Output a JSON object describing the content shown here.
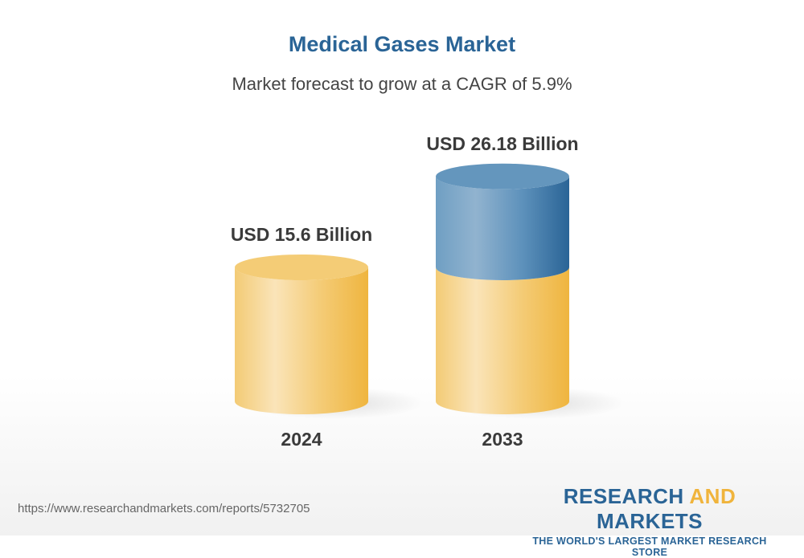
{
  "title": "Medical Gases Market",
  "subtitle": "Market forecast to grow at a CAGR of 5.9%",
  "chart_data": {
    "type": "bar",
    "style": "3d-cylinder",
    "categories": [
      "2024",
      "2033"
    ],
    "values": [
      15.6,
      26.18
    ],
    "data_labels": [
      "USD 15.6 Billion",
      "USD 26.18 Billion"
    ],
    "unit": "USD Billion",
    "cagr": "5.9%",
    "colors": {
      "base": "#f0b43c",
      "growth": "#2a6496"
    },
    "grid": false
  },
  "footer": {
    "url": "https://www.researchandmarkets.com/reports/5732705",
    "logo_part1": "RESEARCH ",
    "logo_part2": "AND",
    "logo_part3": " MARKETS",
    "tagline": "THE WORLD'S LARGEST MARKET RESEARCH STORE"
  }
}
